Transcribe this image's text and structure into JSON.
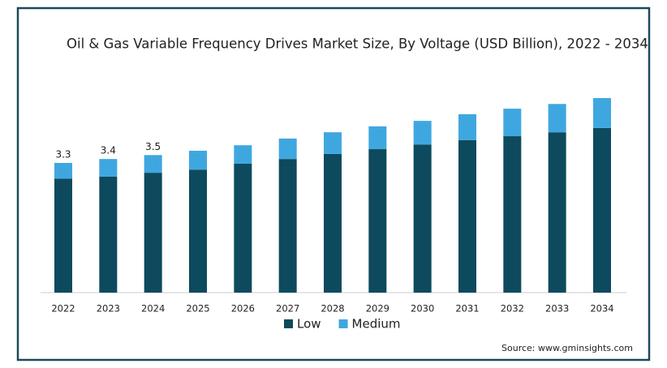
{
  "chart_data": {
    "type": "stacked-bar",
    "title": "Oil & Gas Variable Frequency Drives Market Size, By Voltage (USD Billion), 2022 - 2034",
    "categories": [
      "2022",
      "2023",
      "2024",
      "2025",
      "2026",
      "2027",
      "2028",
      "2029",
      "2030",
      "2031",
      "2032",
      "2033",
      "2034"
    ],
    "series": [
      {
        "name": "Low",
        "color": "#0d4a5e",
        "values": [
          2.9,
          2.95,
          3.05,
          3.13,
          3.28,
          3.4,
          3.53,
          3.65,
          3.77,
          3.88,
          3.98,
          4.08,
          4.19
        ]
      },
      {
        "name": "Medium",
        "color": "#3fa7e0",
        "values": [
          0.4,
          0.45,
          0.45,
          0.48,
          0.47,
          0.52,
          0.55,
          0.58,
          0.6,
          0.66,
          0.7,
          0.72,
          0.76
        ]
      }
    ],
    "total_labels": [
      3.3,
      3.4,
      3.5
    ],
    "legend": "bottom",
    "source": "Source: www.gminsights.com"
  }
}
